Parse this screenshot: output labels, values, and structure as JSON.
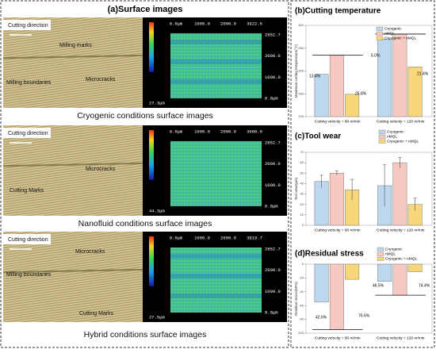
{
  "surface": {
    "title": "(a)Surface images",
    "rows": [
      {
        "labels": [
          "Cutting direction",
          "Milling marks",
          "Milling boundaries",
          "Microcracks"
        ],
        "caption": "Cryogenic conditions surface images",
        "map": {
          "x_axis": [
            "0.0μm",
            "1000.0",
            "2000.0",
            "3922.5"
          ],
          "y_axis": [
            "2852.7",
            "2000.0",
            "1000.0",
            "0.0μm"
          ],
          "depth": "27.3μm"
        }
      },
      {
        "labels": [
          "Cutting direction",
          "Microcracks",
          "Cutting Marks"
        ],
        "caption": "Nanofluid conditions surface images",
        "map": {
          "x_axis": [
            "0.0μm",
            "1000.0",
            "2000.0",
            "3000.0"
          ],
          "y_axis": [
            "2852.7",
            "2000.0",
            "1000.0",
            "0.0μm"
          ],
          "depth": "44.3μm"
        }
      },
      {
        "labels": [
          "Cutting direction",
          "Microcracks",
          "Milling boundaries",
          "Cutting Marks"
        ],
        "caption": "Hybrid conditions surface images",
        "map": {
          "x_axis": [
            "0.0μm",
            "1000.0",
            "2000.0",
            "3919.7"
          ],
          "y_axis": [
            "2852.7",
            "2000.0",
            "1000.0",
            "0.0μm"
          ],
          "depth": "27.5μm"
        }
      }
    ]
  },
  "chart_data": [
    {
      "type": "bar",
      "title": "(b)Cutting temperature",
      "ylabel": "Maximum cutting temperature(°C)",
      "categories": [
        "Cutting velocity = 80 m/min",
        "Cutting velocity = 120 m/min"
      ],
      "series": [
        {
          "name": "Cryogenic",
          "color": "#bcd7ee",
          "values": [
            193,
            270
          ]
        },
        {
          "name": "nMQL",
          "color": "#f6c9c2",
          "values": [
            235,
            281
          ]
        },
        {
          "name": "Cryogenic + nMQL",
          "color": "#f8d77a",
          "values": [
            149,
            209
          ]
        }
      ],
      "ylim": [
        100,
        300
      ],
      "yticks": [
        100,
        150,
        200,
        250,
        300
      ],
      "annotations": [
        "13.4%",
        "25.8%",
        "5.0%",
        "21.4%"
      ]
    },
    {
      "type": "bar",
      "title": "(c)Tool wear",
      "ylabel": "Tool wear(μm)",
      "categories": [
        "Cutting velocity = 80 m/min",
        "Cutting velocity = 120 m/min"
      ],
      "series": [
        {
          "name": "Cryogenic",
          "color": "#bcd7ee",
          "values": [
            42,
            38
          ],
          "errors": [
            6,
            20
          ]
        },
        {
          "name": "nMQL",
          "color": "#f6c9c2",
          "values": [
            50,
            60
          ],
          "errors": [
            2,
            5
          ]
        },
        {
          "name": "Cryogenic + nMQL",
          "color": "#f8d77a",
          "values": [
            34,
            20
          ],
          "errors": [
            10,
            6
          ]
        }
      ],
      "ylim": [
        0,
        70
      ],
      "yticks": [
        0,
        10,
        20,
        30,
        40,
        50,
        60,
        70
      ]
    },
    {
      "type": "bar",
      "title": "(d)Residual stress",
      "ylabel": "Residual stress(MPa)",
      "categories": [
        "Cutting velocity = 80 m/min",
        "Cutting velocity = 120 m/min"
      ],
      "series": [
        {
          "name": "Cryogenic",
          "color": "#bcd7ee",
          "values": [
            -55,
            -25
          ]
        },
        {
          "name": "nMQL",
          "color": "#f6c9c2",
          "values": [
            -95,
            -45
          ]
        },
        {
          "name": "Cryogenic + nMQL",
          "color": "#f8d77a",
          "values": [
            -22,
            -11
          ]
        }
      ],
      "ylim": [
        -100,
        0
      ],
      "yticks": [
        -100,
        -80,
        -60,
        -40,
        -20,
        0
      ],
      "annotations": [
        "42.6%",
        "76.6%",
        "46.5%",
        "74.4%"
      ]
    }
  ]
}
